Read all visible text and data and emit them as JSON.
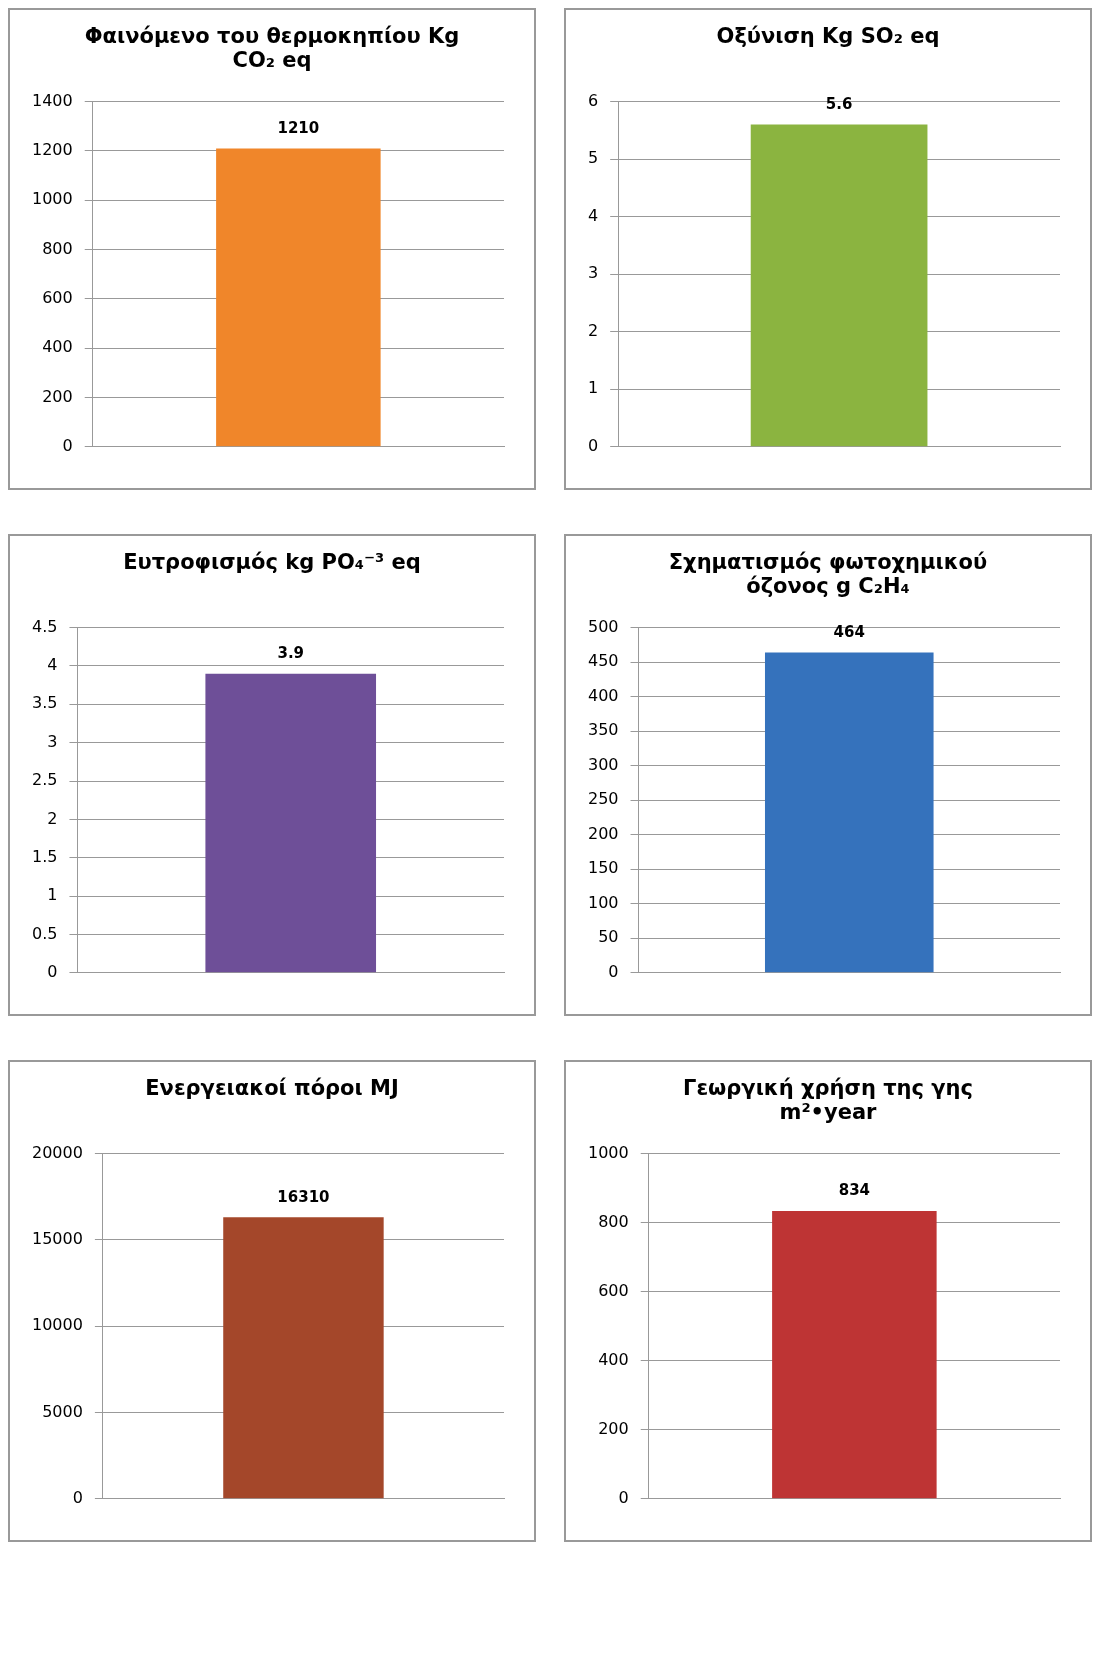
{
  "chart_data": [
    {
      "type": "bar",
      "title": "Φαινόμενο του θερμοκηπίου Kg CO₂ eq",
      "categories": [
        null
      ],
      "values": [
        1210
      ],
      "color": "#f0862a",
      "ylim": [
        0,
        1400
      ],
      "yticks": [
        0,
        200,
        400,
        600,
        800,
        1000,
        1200,
        1400
      ],
      "grid": "y",
      "data_labels": true
    },
    {
      "type": "bar",
      "title": "Οξύνιση Kg SO₂ eq",
      "categories": [
        null
      ],
      "values": [
        5.6
      ],
      "color": "#8bb440",
      "ylim": [
        0,
        6
      ],
      "yticks": [
        0,
        1,
        2,
        3,
        4,
        5,
        6
      ],
      "grid": "y",
      "data_labels": true
    },
    {
      "type": "bar",
      "title": "Ευτροφισμός kg PO₄⁻³ eq",
      "categories": [
        null
      ],
      "values": [
        3.9
      ],
      "color": "#6e4f98",
      "ylim": [
        0,
        4.5
      ],
      "yticks": [
        0,
        0.5,
        1,
        1.5,
        2,
        2.5,
        3,
        3.5,
        4,
        4.5
      ],
      "grid": "y",
      "data_labels": true
    },
    {
      "type": "bar",
      "title": "Σχηματισμός φωτοχημικού όζονος g C₂H₄",
      "categories": [
        null
      ],
      "values": [
        464
      ],
      "color": "#3572bc",
      "ylim": [
        0,
        500
      ],
      "yticks": [
        0,
        50,
        100,
        150,
        200,
        250,
        300,
        350,
        400,
        450,
        500
      ],
      "grid": "y",
      "data_labels": true
    },
    {
      "type": "bar",
      "title": "Ενεργειακοί πόροι MJ",
      "categories": [
        null
      ],
      "values": [
        16310
      ],
      "color": "#a4472a",
      "ylim": [
        0,
        20000
      ],
      "yticks": [
        0,
        5000,
        10000,
        15000,
        20000
      ],
      "grid": "y",
      "data_labels": true
    },
    {
      "type": "bar",
      "title": "Γεωργική χρήση της γης m²•year",
      "categories": [
        null
      ],
      "values": [
        834
      ],
      "color": "#be3434",
      "ylim": [
        0,
        1000
      ],
      "yticks": [
        0,
        200,
        400,
        600,
        800,
        1000
      ],
      "grid": "y",
      "data_labels": true
    }
  ]
}
